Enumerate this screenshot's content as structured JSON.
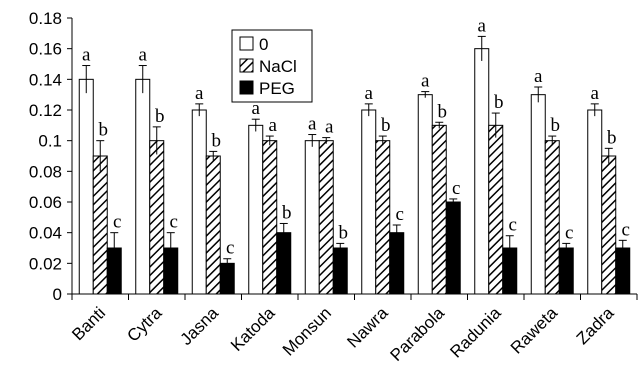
{
  "chart_data": {
    "type": "bar",
    "categories": [
      "Banti",
      "Cytra",
      "Jasna",
      "Katoda",
      "Monsun",
      "Nawra",
      "Parabola",
      "Radunia",
      "Raweta",
      "Zadra"
    ],
    "series": [
      {
        "name": "0",
        "values": [
          0.14,
          0.14,
          0.12,
          0.11,
          0.1,
          0.12,
          0.13,
          0.16,
          0.13,
          0.12
        ],
        "errors": [
          0.009,
          0.009,
          0.004,
          0.004,
          0.004,
          0.004,
          0.002,
          0.008,
          0.005,
          0.004
        ],
        "letters": [
          "a",
          "a",
          "a",
          "a",
          "a",
          "a",
          "a",
          "a",
          "a",
          "a"
        ],
        "fill": "#ffffff"
      },
      {
        "name": "NaCl",
        "values": [
          0.09,
          0.1,
          0.09,
          0.1,
          0.1,
          0.1,
          0.11,
          0.11,
          0.1,
          0.09
        ],
        "errors": [
          0.01,
          0.009,
          0.003,
          0.003,
          0.002,
          0.003,
          0.002,
          0.008,
          0.003,
          0.005
        ],
        "letters": [
          "b",
          "b",
          "b",
          "a",
          "a",
          "b",
          "b",
          "b",
          "b",
          "b"
        ],
        "fill": "hatch"
      },
      {
        "name": "PEG",
        "values": [
          0.03,
          0.03,
          0.02,
          0.04,
          0.03,
          0.04,
          0.06,
          0.03,
          0.03,
          0.03
        ],
        "errors": [
          0.01,
          0.01,
          0.003,
          0.006,
          0.003,
          0.005,
          0.002,
          0.008,
          0.003,
          0.005
        ],
        "letters": [
          "c",
          "c",
          "c",
          "b",
          "b",
          "c",
          "c",
          "c",
          "c",
          "c"
        ],
        "fill": "#000000"
      }
    ],
    "title": "",
    "xlabel": "",
    "ylabel": "",
    "ylim": [
      0,
      0.18
    ],
    "yticks": [
      "0",
      "0.02",
      "0.04",
      "0.06",
      "0.08",
      "0.1",
      "0.12",
      "0.14",
      "0.16",
      "0.18"
    ],
    "grid": false,
    "legend_position": "top-center"
  }
}
